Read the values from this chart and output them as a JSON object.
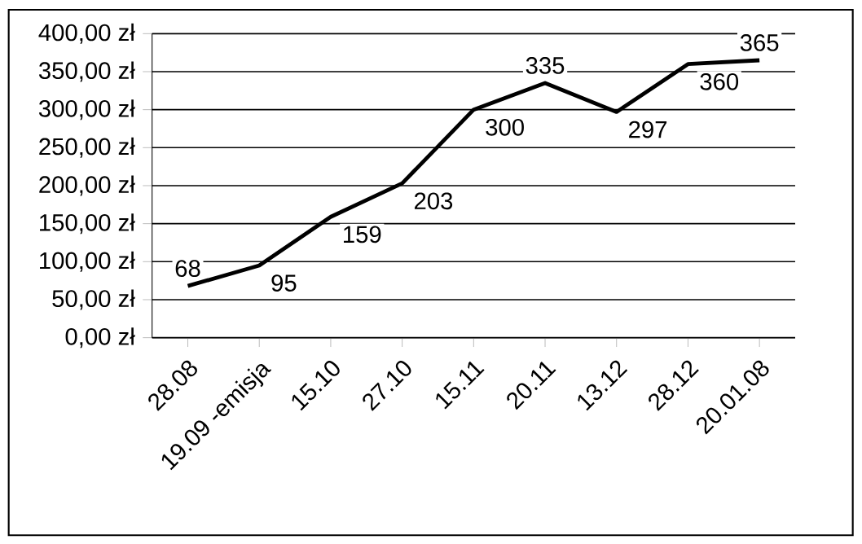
{
  "chart_data": {
    "type": "line",
    "categories": [
      "28.08",
      "19.09 -emisja",
      "15.10",
      "27.10",
      "15.11",
      "20.11",
      "13.12",
      "28.12",
      "20.01.08"
    ],
    "values": [
      68,
      95,
      159,
      203,
      300,
      335,
      297,
      360,
      365
    ],
    "color": "#000000",
    "data_labels": true,
    "grid": "y",
    "marker": "none",
    "line_style": "solid",
    "ylim": [
      0,
      400
    ],
    "yticks": [
      {
        "value": 0,
        "label": "0,00 zł"
      },
      {
        "value": 50,
        "label": "50,00 zł"
      },
      {
        "value": 100,
        "label": "100,00 zł"
      },
      {
        "value": 150,
        "label": "150,00 zł"
      },
      {
        "value": 200,
        "label": "200,00 zł"
      },
      {
        "value": 250,
        "label": "250,00 zł"
      },
      {
        "value": 300,
        "label": "300,00 zł"
      },
      {
        "value": 350,
        "label": "350,00 zł"
      },
      {
        "value": 400,
        "label": "400,00 zł"
      }
    ]
  }
}
